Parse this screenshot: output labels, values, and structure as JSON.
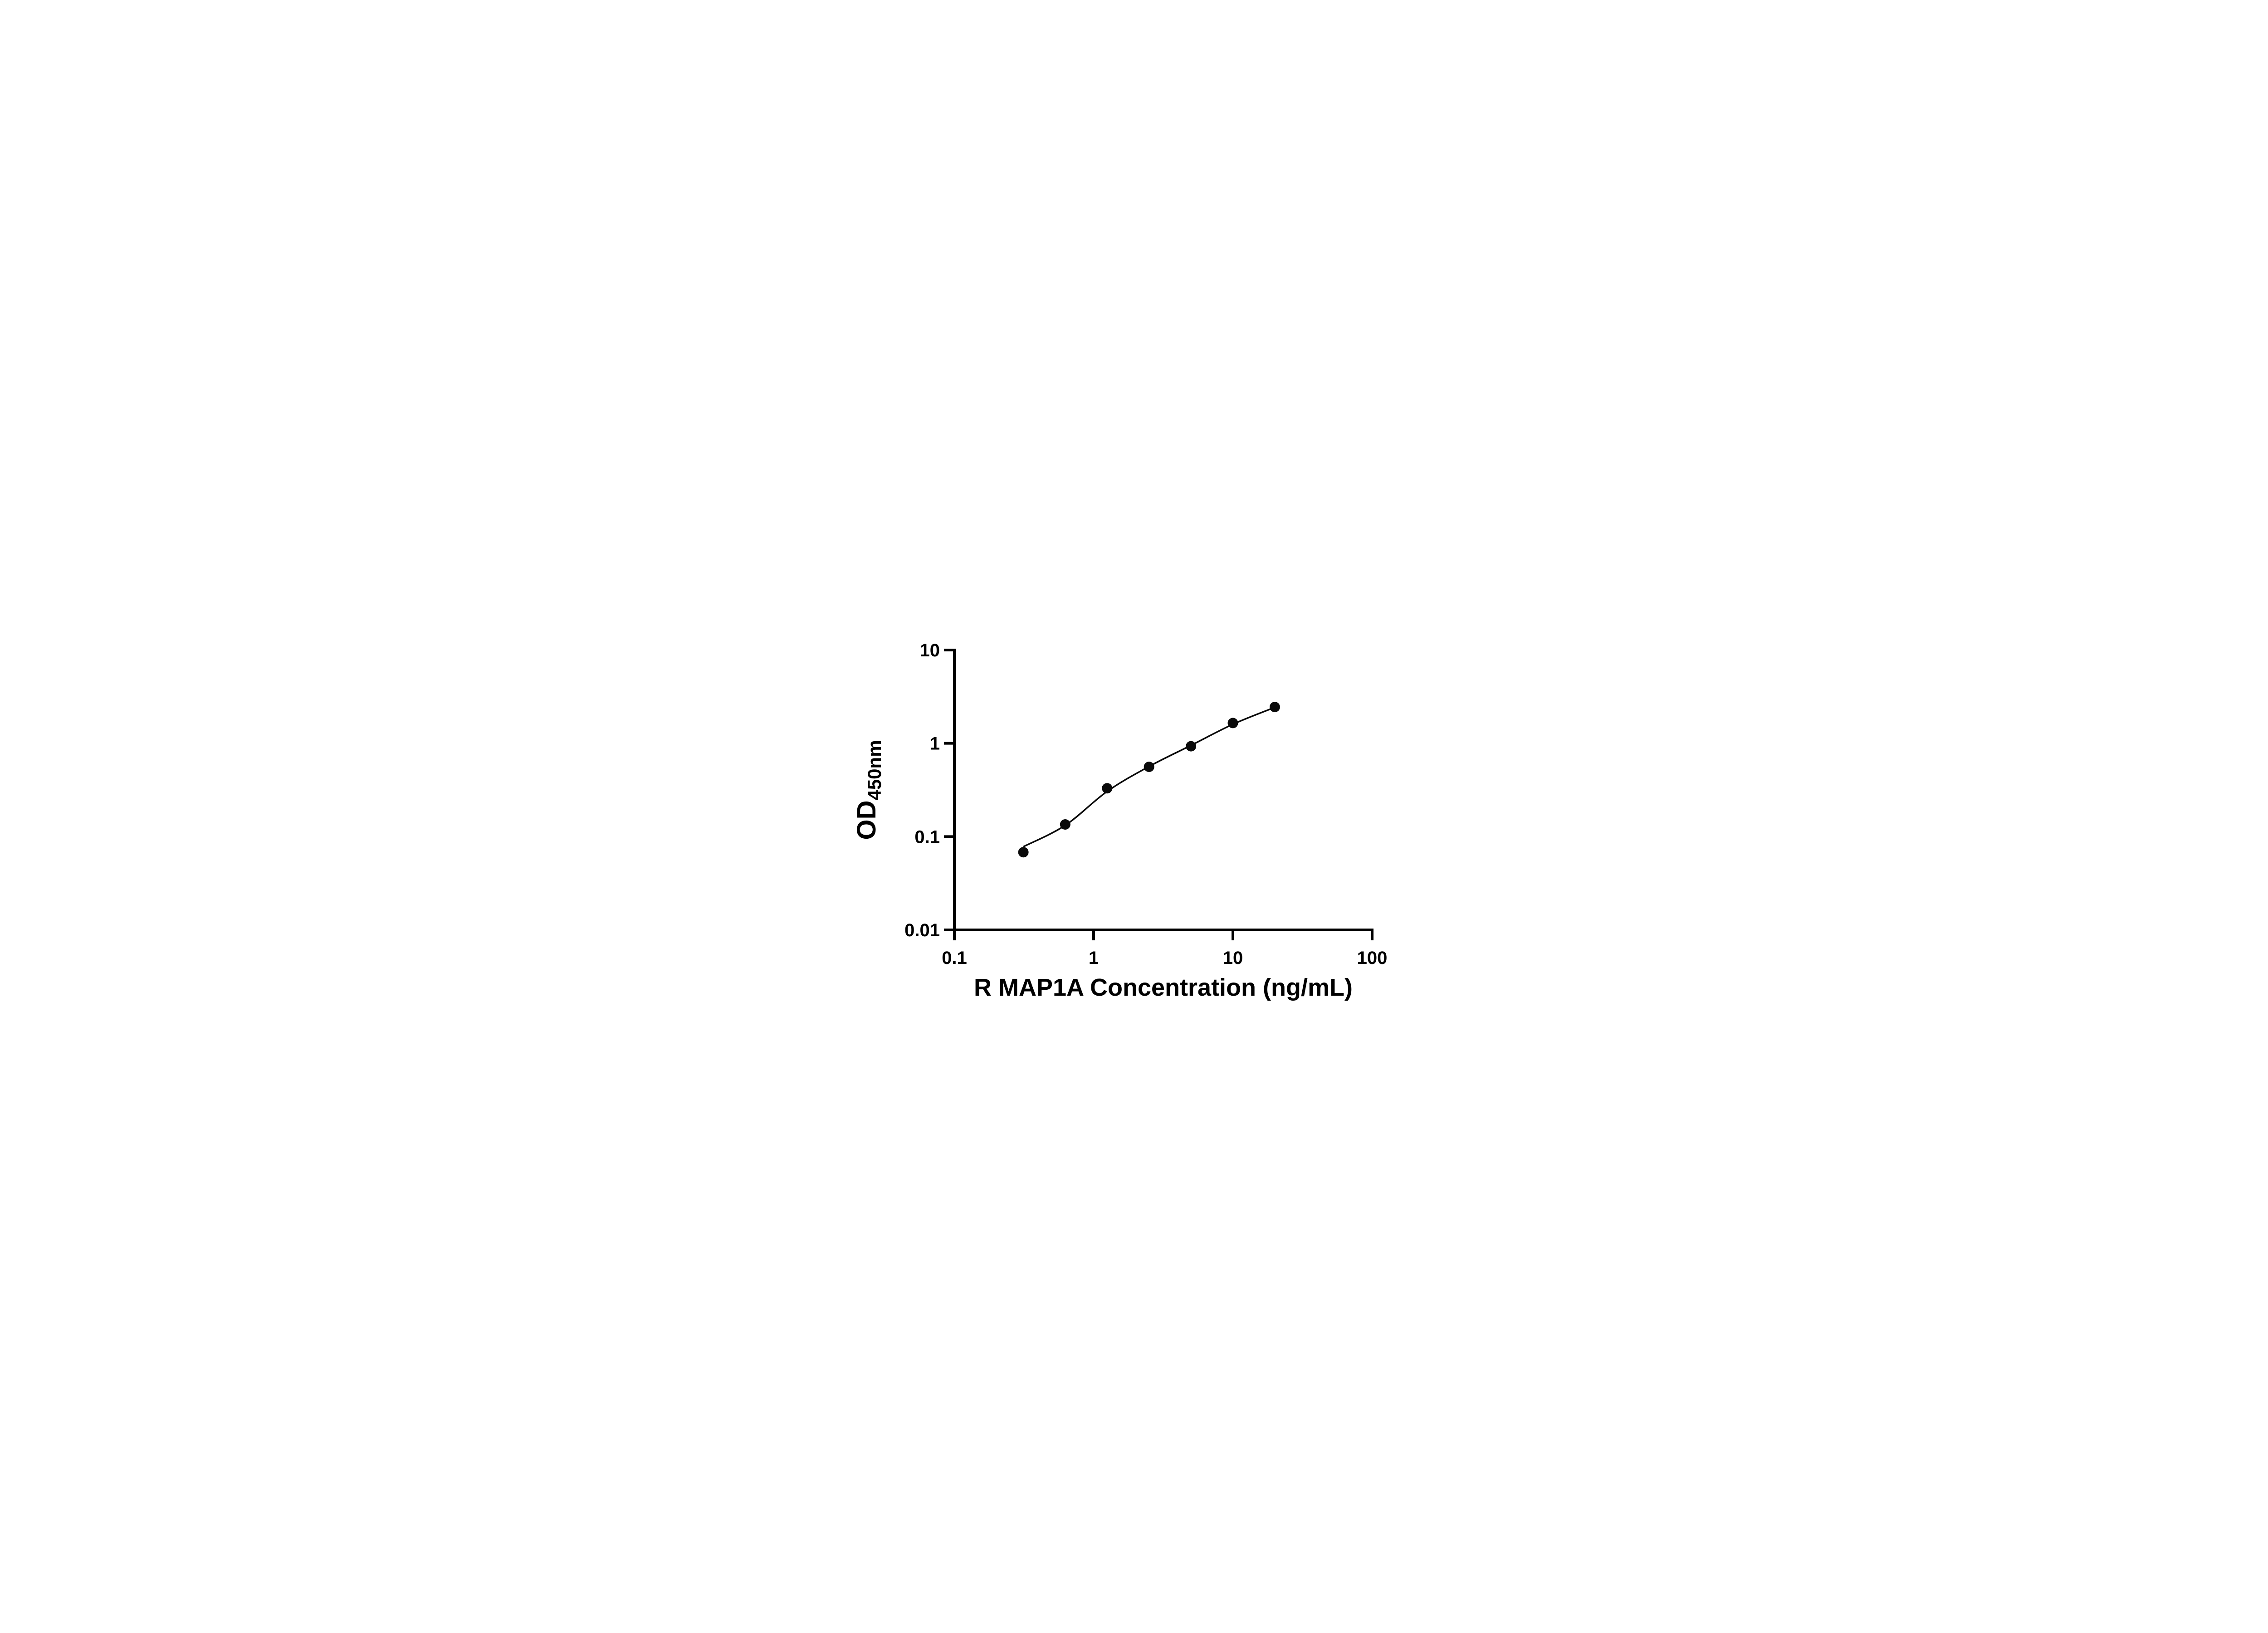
{
  "chart_data": {
    "type": "scatter",
    "title": "",
    "xlabel": "R MAP1A Concentration (ng/mL)",
    "ylabel_main": "OD",
    "ylabel_sub": "450nm",
    "x_scale": "log",
    "y_scale": "log",
    "xlim": [
      0.1,
      100
    ],
    "ylim": [
      0.01,
      10
    ],
    "x_ticks": [
      0.1,
      1,
      10,
      100
    ],
    "x_tick_labels": [
      "0.1",
      "1",
      "10",
      "100"
    ],
    "y_ticks": [
      0.01,
      0.1,
      1,
      10
    ],
    "y_tick_labels": [
      "0.01",
      "0.1",
      "1",
      "10"
    ],
    "grid": false,
    "legend": "none",
    "series": [
      {
        "name": "standard-curve-points",
        "marker": "filled-circle",
        "x": [
          0.313,
          0.625,
          1.25,
          2.5,
          5,
          10,
          20
        ],
        "y": [
          0.068,
          0.135,
          0.33,
          0.56,
          0.93,
          1.65,
          2.45
        ]
      }
    ],
    "fit_curve": {
      "x": [
        0.313,
        0.625,
        1.25,
        2.5,
        5,
        10,
        20
      ],
      "y": [
        0.078,
        0.132,
        0.305,
        0.565,
        0.95,
        1.6,
        2.43
      ]
    },
    "colors": {
      "axis": "#000000",
      "marker": "#0a0a0a",
      "line": "#0a0a0a",
      "background": "#ffffff"
    }
  }
}
